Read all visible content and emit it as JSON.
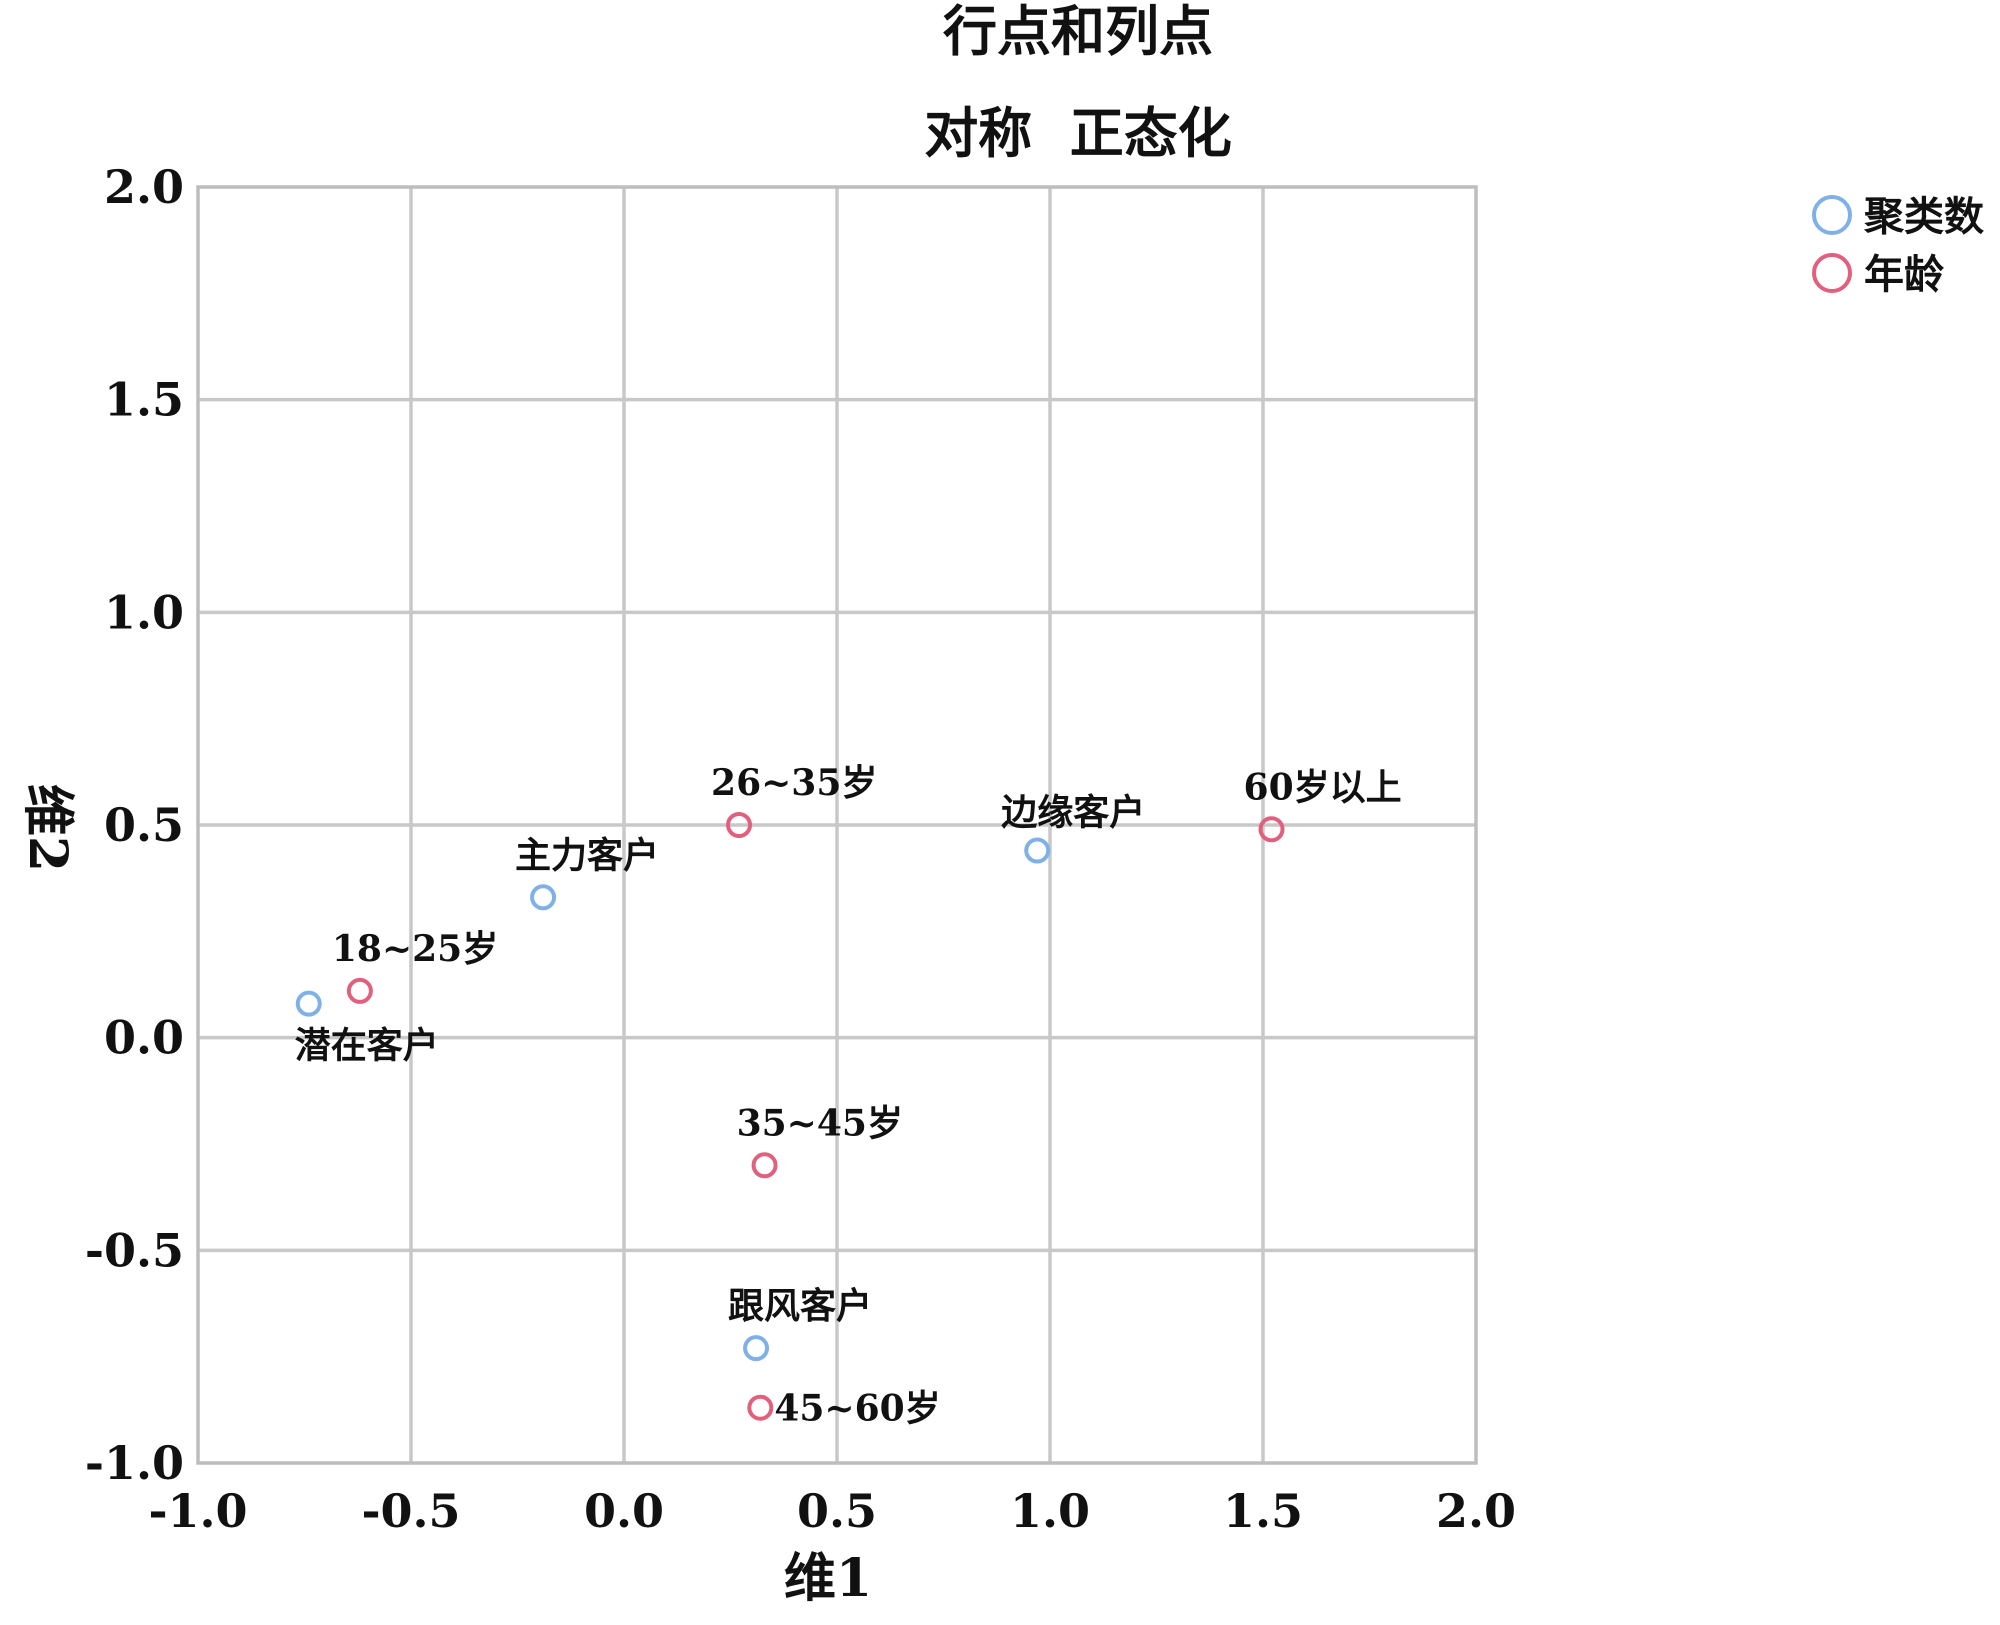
{
  "chart_data": {
    "type": "scatter",
    "title": "行点和列点",
    "subtitle": "对称  正态化",
    "xlabel": "维1",
    "ylabel": "维2",
    "xlim": [
      -1.0,
      2.0
    ],
    "ylim": [
      -1.0,
      2.0
    ],
    "xticks": [
      "-1.0",
      "-0.5",
      "0.0",
      "0.5",
      "1.0",
      "1.5",
      "2.0"
    ],
    "yticks": [
      "-1.0",
      "-0.5",
      "0.0",
      "0.5",
      "1.0",
      "1.5",
      "2.0"
    ],
    "grid": true,
    "legend_position": "top-right",
    "series": [
      {
        "name": "聚类数",
        "color": "#7fb0e8",
        "points": [
          {
            "x": -0.74,
            "y": 0.08,
            "label": "潜在客户",
            "label_pos": "below"
          },
          {
            "x": -0.19,
            "y": 0.33,
            "label": "主力客户",
            "label_pos": "above-right"
          },
          {
            "x": 0.97,
            "y": 0.44,
            "label": "边缘客户",
            "label_pos": "above"
          },
          {
            "x": 0.31,
            "y": -0.73,
            "label": "跟风客户",
            "label_pos": "above-right"
          }
        ]
      },
      {
        "name": "年龄",
        "color": "#e0607e",
        "points": [
          {
            "x": -0.62,
            "y": 0.11,
            "label": "18~25岁",
            "label_pos": "above-right"
          },
          {
            "x": 0.27,
            "y": 0.5,
            "label": "26~35岁",
            "label_pos": "above-right"
          },
          {
            "x": 0.33,
            "y": -0.3,
            "label": "35~45岁",
            "label_pos": "above-right"
          },
          {
            "x": 0.32,
            "y": -0.87,
            "label": "45~60岁",
            "label_pos": "right"
          },
          {
            "x": 1.52,
            "y": 0.49,
            "label": "60岁以上",
            "label_pos": "above-right"
          }
        ]
      }
    ]
  }
}
